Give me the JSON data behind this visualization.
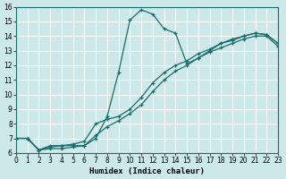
{
  "xlabel": "Humidex (Indice chaleur)",
  "xlim": [
    0,
    23
  ],
  "ylim": [
    6,
    16
  ],
  "xticks": [
    0,
    1,
    2,
    3,
    4,
    5,
    6,
    7,
    8,
    9,
    10,
    11,
    12,
    13,
    14,
    15,
    16,
    17,
    18,
    19,
    20,
    21,
    22,
    23
  ],
  "yticks": [
    6,
    7,
    8,
    9,
    10,
    11,
    12,
    13,
    14,
    15,
    16
  ],
  "bg_color": "#cde8e8",
  "line_color": "#1a6b6b",
  "grid_color": "#b8d8d8",
  "lines": [
    {
      "x": [
        0,
        1,
        2,
        3,
        4,
        5,
        6,
        7,
        8,
        9,
        10,
        11,
        12,
        13,
        14,
        15,
        16,
        17,
        18,
        19,
        20,
        21,
        22,
        23
      ],
      "y": [
        7.0,
        7.0,
        6.2,
        6.5,
        6.5,
        6.5,
        6.5,
        7.0,
        8.5,
        11.5,
        15.1,
        15.8,
        15.5,
        14.5,
        14.2,
        12.1,
        12.5,
        13.0,
        13.5,
        13.8,
        14.0,
        14.2,
        14.1,
        13.5
      ]
    },
    {
      "x": [
        0,
        1,
        2,
        3,
        4,
        5,
        6,
        7,
        8,
        9,
        10,
        11,
        12,
        13,
        14,
        15,
        16,
        17,
        18,
        19,
        20,
        21,
        22,
        23
      ],
      "y": [
        7.0,
        7.0,
        6.2,
        6.4,
        6.5,
        6.6,
        6.8,
        8.0,
        8.3,
        8.5,
        9.0,
        9.8,
        10.8,
        11.5,
        12.0,
        12.3,
        12.8,
        13.1,
        13.5,
        13.7,
        14.0,
        14.2,
        14.1,
        13.5
      ]
    },
    {
      "x": [
        0,
        1,
        2,
        3,
        4,
        5,
        6,
        7,
        8,
        9,
        10,
        11,
        12,
        13,
        14,
        15,
        16,
        17,
        18,
        19,
        20,
        21,
        22,
        23
      ],
      "y": [
        7.0,
        7.0,
        6.2,
        6.3,
        6.3,
        6.4,
        6.5,
        7.2,
        7.8,
        8.2,
        8.7,
        9.3,
        10.2,
        11.0,
        11.6,
        12.0,
        12.5,
        12.9,
        13.2,
        13.5,
        13.8,
        14.0,
        14.0,
        13.3
      ]
    }
  ]
}
